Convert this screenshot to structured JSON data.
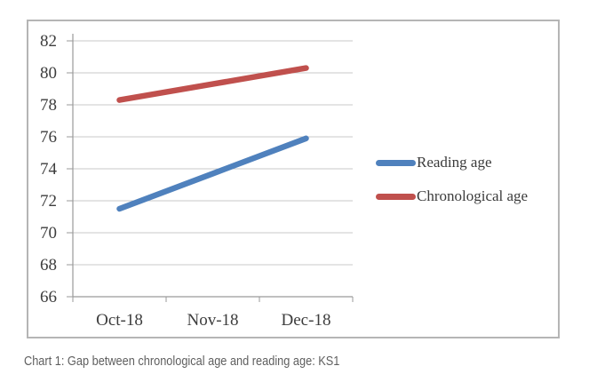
{
  "caption": "Chart 1: Gap between chronological age and reading age: KS1",
  "chart_data": {
    "type": "line",
    "title": "",
    "xlabel": "",
    "ylabel": "",
    "categories": [
      "Oct-18",
      "Nov-18",
      "Dec-18"
    ],
    "series": [
      {
        "name": "Reading age",
        "color": "#4F81BD",
        "values": [
          71.5,
          73.7,
          75.9
        ]
      },
      {
        "name": "Chronological age",
        "color": "#C0504D",
        "values": [
          78.3,
          79.3,
          80.3
        ]
      }
    ],
    "ylim": [
      66,
      82
    ],
    "yticks": [
      66,
      68,
      70,
      72,
      74,
      76,
      78,
      80,
      82
    ],
    "grid": true,
    "legend_position": "right"
  }
}
